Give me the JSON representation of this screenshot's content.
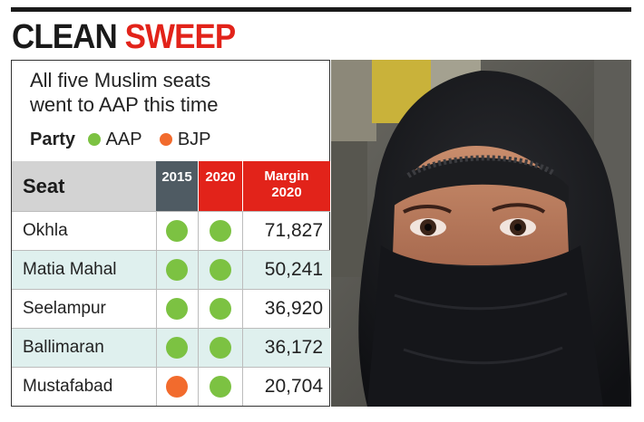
{
  "headline": {
    "part1": "CLEAN",
    "part2": "SWEEP"
  },
  "subtitle_lines": [
    "All five Muslim seats",
    "went to AAP this time"
  ],
  "legend": {
    "label": "Party",
    "items": [
      {
        "name": "AAP",
        "color": "#7cc242"
      },
      {
        "name": "BJP",
        "color": "#f26b2d"
      }
    ]
  },
  "colors": {
    "aap": "#7cc242",
    "bjp": "#f26b2d",
    "accent_red": "#e2231a",
    "header_grey": "#4f5b63"
  },
  "chart_data": {
    "type": "table",
    "columns": [
      "Seat",
      "2015",
      "2020",
      "Margin 2020"
    ],
    "margin_header_lines": [
      "Margin",
      "2020"
    ],
    "rows": [
      {
        "seat": "Okhla",
        "y2015": "AAP",
        "y2020": "AAP",
        "margin": "71,827"
      },
      {
        "seat": "Matia Mahal",
        "y2015": "AAP",
        "y2020": "AAP",
        "margin": "50,241"
      },
      {
        "seat": "Seelampur",
        "y2015": "AAP",
        "y2020": "AAP",
        "margin": "36,920"
      },
      {
        "seat": "Ballimaran",
        "y2015": "AAP",
        "y2020": "AAP",
        "margin": "36,172"
      },
      {
        "seat": "Mustafabad",
        "y2015": "BJP",
        "y2020": "AAP",
        "margin": "20,704"
      }
    ]
  }
}
